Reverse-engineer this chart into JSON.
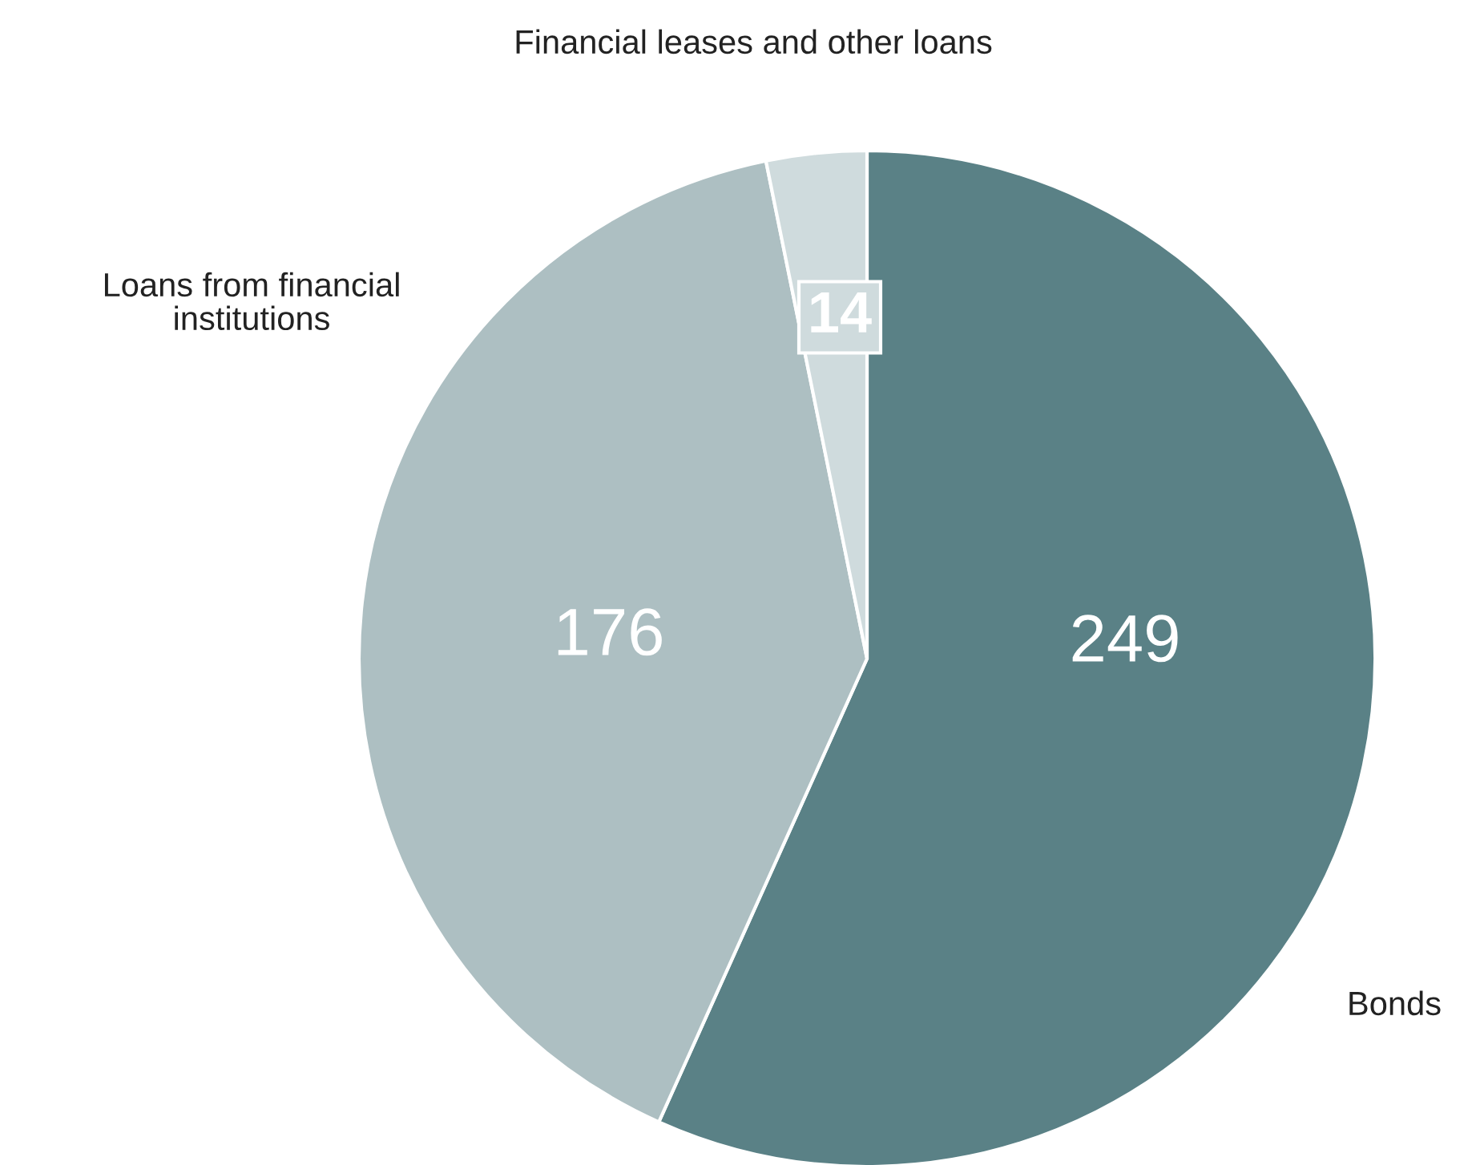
{
  "chart_data": {
    "type": "pie",
    "categories": [
      "Bonds",
      "Loans from financial\ninstitutions",
      "Financial leases and other loans"
    ],
    "values": [
      249,
      176,
      14
    ],
    "colors": [
      "#5a8186",
      "#adbfc2",
      "#cfdbdd"
    ],
    "data_labels": true
  }
}
